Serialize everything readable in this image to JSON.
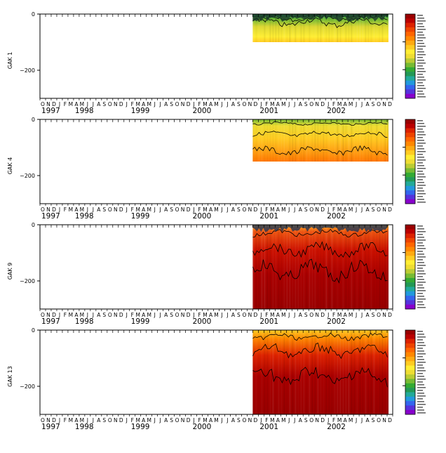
{
  "chart_data": {
    "type": "heatmap",
    "x_axis": {
      "month_letters": [
        "O",
        "N",
        "D",
        "J",
        "F",
        "M",
        "A",
        "M",
        "J",
        "J",
        "A",
        "S",
        "O",
        "N",
        "D",
        "J",
        "F",
        "M",
        "A",
        "M",
        "J",
        "J",
        "A",
        "S",
        "O",
        "N",
        "D",
        "J",
        "F",
        "M",
        "A",
        "M",
        "J",
        "J",
        "A",
        "S",
        "O",
        "N",
        "D",
        "J",
        "F",
        "M",
        "A",
        "M",
        "J",
        "J",
        "A",
        "S",
        "O",
        "N",
        "D",
        "J",
        "F",
        "M",
        "A",
        "M",
        "J",
        "J",
        "A",
        "S",
        "O",
        "N",
        "D"
      ],
      "years": [
        {
          "label": "1997",
          "month_index": 0
        },
        {
          "label": "1998",
          "month_index": 6
        },
        {
          "label": "1999",
          "month_index": 16
        },
        {
          "label": "2000",
          "month_index": 27
        },
        {
          "label": "2001",
          "month_index": 39
        },
        {
          "label": "2002",
          "month_index": 51
        }
      ],
      "range": [
        "1997-10",
        "2002-12"
      ]
    },
    "y_axis": {
      "range": [
        -300,
        0
      ],
      "tick_labels": [
        "0",
        "−200"
      ],
      "ticks": [
        0,
        -200
      ]
    },
    "colorbar": {
      "colors": [
        "#8800cc",
        "#5533dd",
        "#3366ee",
        "#2299dd",
        "#22aa99",
        "#229955",
        "#33aa33",
        "#77bb33",
        "#bbcc33",
        "#eedd33",
        "#ffee33",
        "#ffcc22",
        "#ffaa11",
        "#ff8800",
        "#ff6600",
        "#ee4400",
        "#dd2200",
        "#bb0000",
        "#990000"
      ],
      "labels_note": "stacked small level labels, illegible at this resolution"
    },
    "panels": [
      {
        "label": "GAK 1",
        "data_start": "2000-12",
        "data_end": "2002-12",
        "data_depth": -100
      },
      {
        "label": "GAK 4",
        "data_start": "2000-12",
        "data_end": "2002-12",
        "data_depth": -150
      },
      {
        "label": "GAK 9",
        "data_start": "2000-12",
        "data_end": "2002-12",
        "data_depth": -300
      },
      {
        "label": "GAK 13",
        "data_start": "2000-12",
        "data_end": "2002-12",
        "data_depth": -300
      }
    ]
  }
}
